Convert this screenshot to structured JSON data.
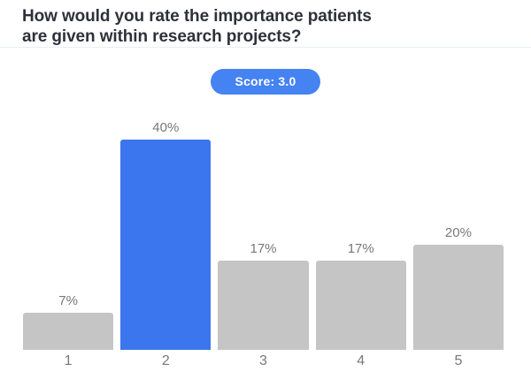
{
  "header": {
    "title": "How would you rate the importance patients\nare given within research projects?"
  },
  "score_badge": {
    "label": "Score: 3.0"
  },
  "chart_data": {
    "type": "bar",
    "title": "How would you rate the importance patients are given within research projects?",
    "categories": [
      "1",
      "2",
      "3",
      "4",
      "5"
    ],
    "values": [
      7,
      40,
      17,
      17,
      20
    ],
    "value_labels": [
      "7%",
      "40%",
      "17%",
      "17%",
      "20%"
    ],
    "highlight_index": 1,
    "xlabel": "",
    "ylabel": "",
    "ylim": [
      0,
      40
    ],
    "grid": false,
    "legend": false,
    "colors": {
      "highlight": "#3b76ee",
      "default": "#c5c5c6",
      "label": "#787878"
    }
  },
  "colors": {
    "badge_background": "#4582f2",
    "badge_text": "#ffffff",
    "title_text": "#2d3139",
    "divider": "#e8eef4",
    "background": "#ffffff"
  }
}
